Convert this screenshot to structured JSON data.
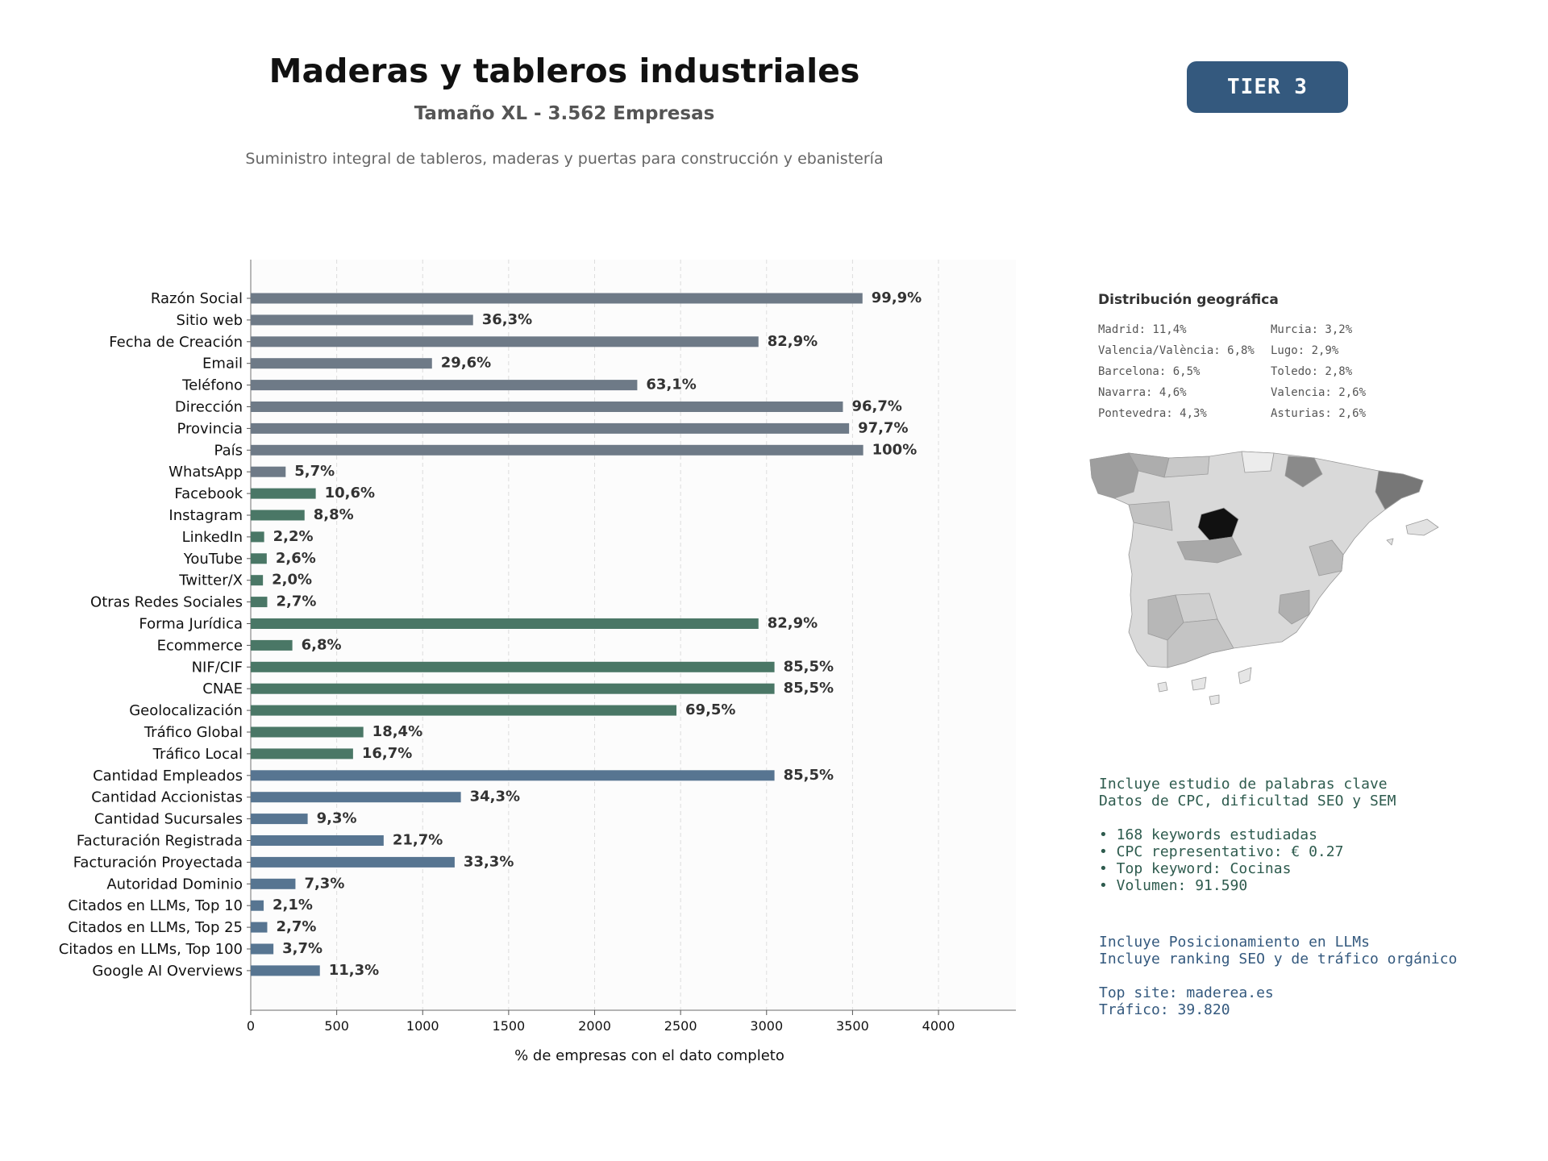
{
  "header": {
    "title": "Maderas y tableros industriales",
    "subtitle": "Tamaño XL - 3.562 Empresas",
    "description": "Suministro integral de tableros, maderas y puertas para construcción y ebanistería",
    "tier": "TIER 3"
  },
  "chart_data": {
    "type": "bar",
    "orientation": "horizontal",
    "xlabel": "% de empresas con el dato completo",
    "xlim": [
      0,
      4450
    ],
    "xticks": [
      0,
      500,
      1000,
      1500,
      2000,
      2500,
      3000,
      3500,
      4000
    ],
    "grid": "vertical dashed",
    "colors": {
      "contact": "#6e7a87",
      "social": "#4a7766",
      "business": "#577591"
    },
    "bars": [
      {
        "label": "Razón Social",
        "value": 3558,
        "pct": "99,9%",
        "group": "contact"
      },
      {
        "label": "Sitio web",
        "value": 1293,
        "pct": "36,3%",
        "group": "contact"
      },
      {
        "label": "Fecha de Creación",
        "value": 2953,
        "pct": "82,9%",
        "group": "contact"
      },
      {
        "label": "Email",
        "value": 1054,
        "pct": "29,6%",
        "group": "contact"
      },
      {
        "label": "Teléfono",
        "value": 2248,
        "pct": "63,1%",
        "group": "contact"
      },
      {
        "label": "Dirección",
        "value": 3444,
        "pct": "96,7%",
        "group": "contact"
      },
      {
        "label": "Provincia",
        "value": 3480,
        "pct": "97,7%",
        "group": "contact"
      },
      {
        "label": "País",
        "value": 3562,
        "pct": "100%",
        "group": "contact"
      },
      {
        "label": "WhatsApp",
        "value": 203,
        "pct": "5,7%",
        "group": "contact"
      },
      {
        "label": "Facebook",
        "value": 378,
        "pct": "10,6%",
        "group": "social"
      },
      {
        "label": "Instagram",
        "value": 313,
        "pct": "8,8%",
        "group": "social"
      },
      {
        "label": "LinkedIn",
        "value": 78,
        "pct": "2,2%",
        "group": "social"
      },
      {
        "label": "YouTube",
        "value": 93,
        "pct": "2,6%",
        "group": "social"
      },
      {
        "label": "Twitter/X",
        "value": 71,
        "pct": "2,0%",
        "group": "social"
      },
      {
        "label": "Otras Redes Sociales",
        "value": 96,
        "pct": "2,7%",
        "group": "social"
      },
      {
        "label": "Forma Jurídica",
        "value": 2953,
        "pct": "82,9%",
        "group": "social"
      },
      {
        "label": "Ecommerce",
        "value": 242,
        "pct": "6,8%",
        "group": "social"
      },
      {
        "label": "NIF/CIF",
        "value": 3046,
        "pct": "85,5%",
        "group": "social"
      },
      {
        "label": "CNAE",
        "value": 3046,
        "pct": "85,5%",
        "group": "social"
      },
      {
        "label": "Geolocalización",
        "value": 2476,
        "pct": "69,5%",
        "group": "social"
      },
      {
        "label": "Tráfico Global",
        "value": 655,
        "pct": "18,4%",
        "group": "social"
      },
      {
        "label": "Tráfico Local",
        "value": 595,
        "pct": "16,7%",
        "group": "social"
      },
      {
        "label": "Cantidad Empleados",
        "value": 3046,
        "pct": "85,5%",
        "group": "business"
      },
      {
        "label": "Cantidad Accionistas",
        "value": 1222,
        "pct": "34,3%",
        "group": "business"
      },
      {
        "label": "Cantidad Sucursales",
        "value": 331,
        "pct": "9,3%",
        "group": "business"
      },
      {
        "label": "Facturación Registrada",
        "value": 773,
        "pct": "21,7%",
        "group": "business"
      },
      {
        "label": "Facturación Proyectada",
        "value": 1186,
        "pct": "33,3%",
        "group": "business"
      },
      {
        "label": "Autoridad Dominio",
        "value": 260,
        "pct": "7,3%",
        "group": "business"
      },
      {
        "label": "Citados en LLMs, Top 10",
        "value": 75,
        "pct": "2,1%",
        "group": "business"
      },
      {
        "label": "Citados en LLMs, Top 25",
        "value": 96,
        "pct": "2,7%",
        "group": "business"
      },
      {
        "label": "Citados en LLMs, Top 100",
        "value": 132,
        "pct": "3,7%",
        "group": "business"
      },
      {
        "label": "Google AI Overviews",
        "value": 402,
        "pct": "11,3%",
        "group": "business"
      }
    ]
  },
  "geo": {
    "title": "Distribución geográfica",
    "items": [
      "Madrid: 11,4%",
      "Murcia: 3,2%",
      "Valencia/València: 6,8%",
      "Lugo: 2,9%",
      "Barcelona: 6,5%",
      "Toledo: 2,8%",
      "Navarra: 4,6%",
      "Valencia: 2,6%",
      "Pontevedra: 4,3%",
      "Asturias: 2,6%"
    ]
  },
  "seo": {
    "line1": "Incluye estudio de palabras clave",
    "line2": "Datos de CPC, dificultad SEO y SEM",
    "bullet1": "• 168 keywords estudiadas",
    "bullet2": "• CPC representativo: € 0.27",
    "bullet3": "• Top keyword: Cocinas",
    "bullet4": "• Volumen: 91.590"
  },
  "llm": {
    "line1": "Incluye Posicionamiento en LLMs",
    "line2": "Incluye ranking SEO y de tráfico orgánico",
    "top_site": "Top site: maderea.es",
    "traffic": "Tráfico: 39.820"
  }
}
